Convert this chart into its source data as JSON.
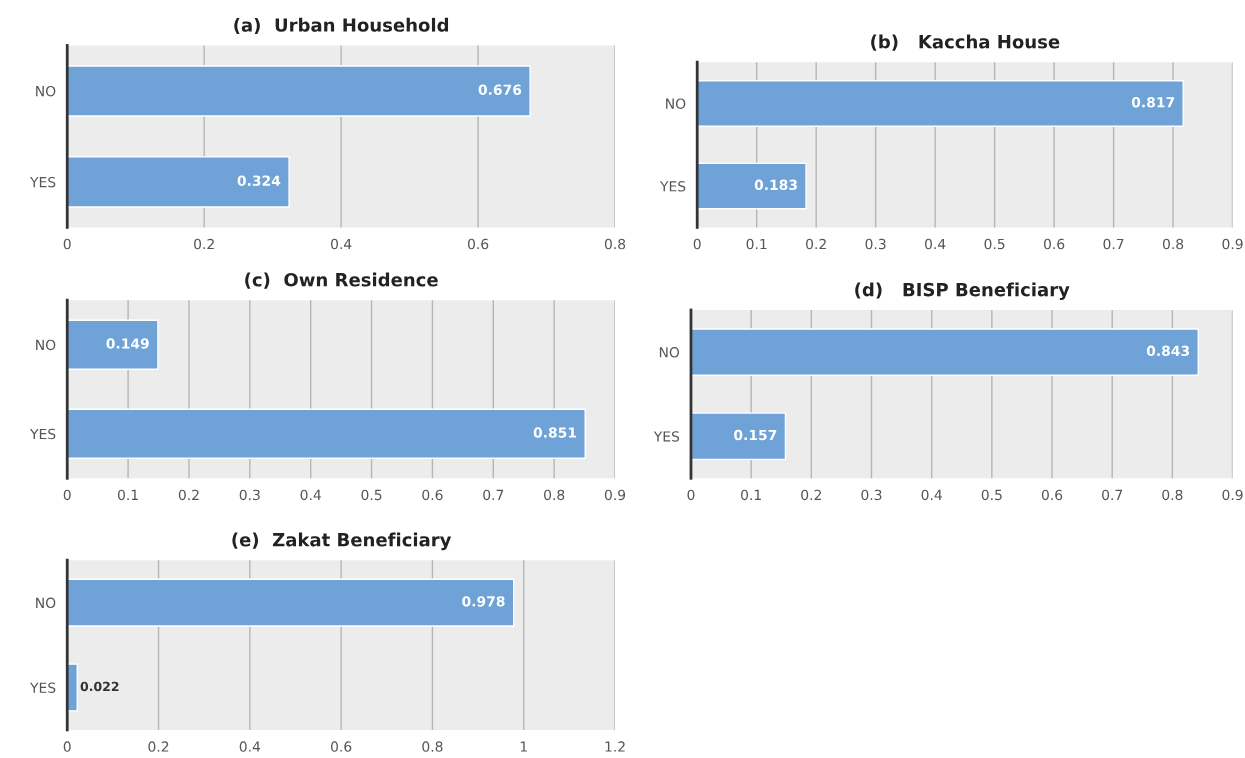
{
  "chart_data": [
    {
      "type": "bar",
      "orientation": "horizontal",
      "title": "(a)  Urban Household",
      "categories": [
        "NO",
        "YES"
      ],
      "values": [
        0.676,
        0.324
      ],
      "color": "#6fa3d8",
      "xlim": [
        0,
        0.8
      ],
      "xticks": [
        0,
        0.2,
        0.4,
        0.6,
        0.8
      ],
      "grid": "x",
      "data_labels": true
    },
    {
      "type": "bar",
      "orientation": "horizontal",
      "title": "(b)   Kaccha House",
      "categories": [
        "NO",
        "YES"
      ],
      "values": [
        0.817,
        0.183
      ],
      "color": "#6fa3d8",
      "xlim": [
        0,
        0.9
      ],
      "xticks": [
        0,
        0.1,
        0.2,
        0.3,
        0.4,
        0.5,
        0.6,
        0.7,
        0.8,
        0.9
      ],
      "grid": "x",
      "data_labels": true
    },
    {
      "type": "bar",
      "orientation": "horizontal",
      "title": "(c)  Own Residence",
      "categories": [
        "NO",
        "YES"
      ],
      "values": [
        0.149,
        0.851
      ],
      "color": "#6fa3d8",
      "xlim": [
        0,
        0.9
      ],
      "xticks": [
        0,
        0.1,
        0.2,
        0.3,
        0.4,
        0.5,
        0.6,
        0.7,
        0.8,
        0.9
      ],
      "grid": "x",
      "data_labels": true
    },
    {
      "type": "bar",
      "orientation": "horizontal",
      "title": "(d)   BISP Beneficiary",
      "categories": [
        "NO",
        "YES"
      ],
      "values": [
        0.843,
        0.157
      ],
      "color": "#6fa3d8",
      "xlim": [
        0,
        0.9
      ],
      "xticks": [
        0,
        0.1,
        0.2,
        0.3,
        0.4,
        0.5,
        0.6,
        0.7,
        0.8,
        0.9
      ],
      "grid": "x",
      "data_labels": true
    },
    {
      "type": "bar",
      "orientation": "horizontal",
      "title": "(e)  Zakat Beneficiary",
      "categories": [
        "NO",
        "YES"
      ],
      "values": [
        0.978,
        0.022
      ],
      "color": "#6fa3d8",
      "xlim": [
        0,
        1.2
      ],
      "xticks": [
        0,
        0.2,
        0.4,
        0.6,
        0.8,
        1,
        1.2
      ],
      "grid": "x",
      "data_labels": true
    }
  ]
}
